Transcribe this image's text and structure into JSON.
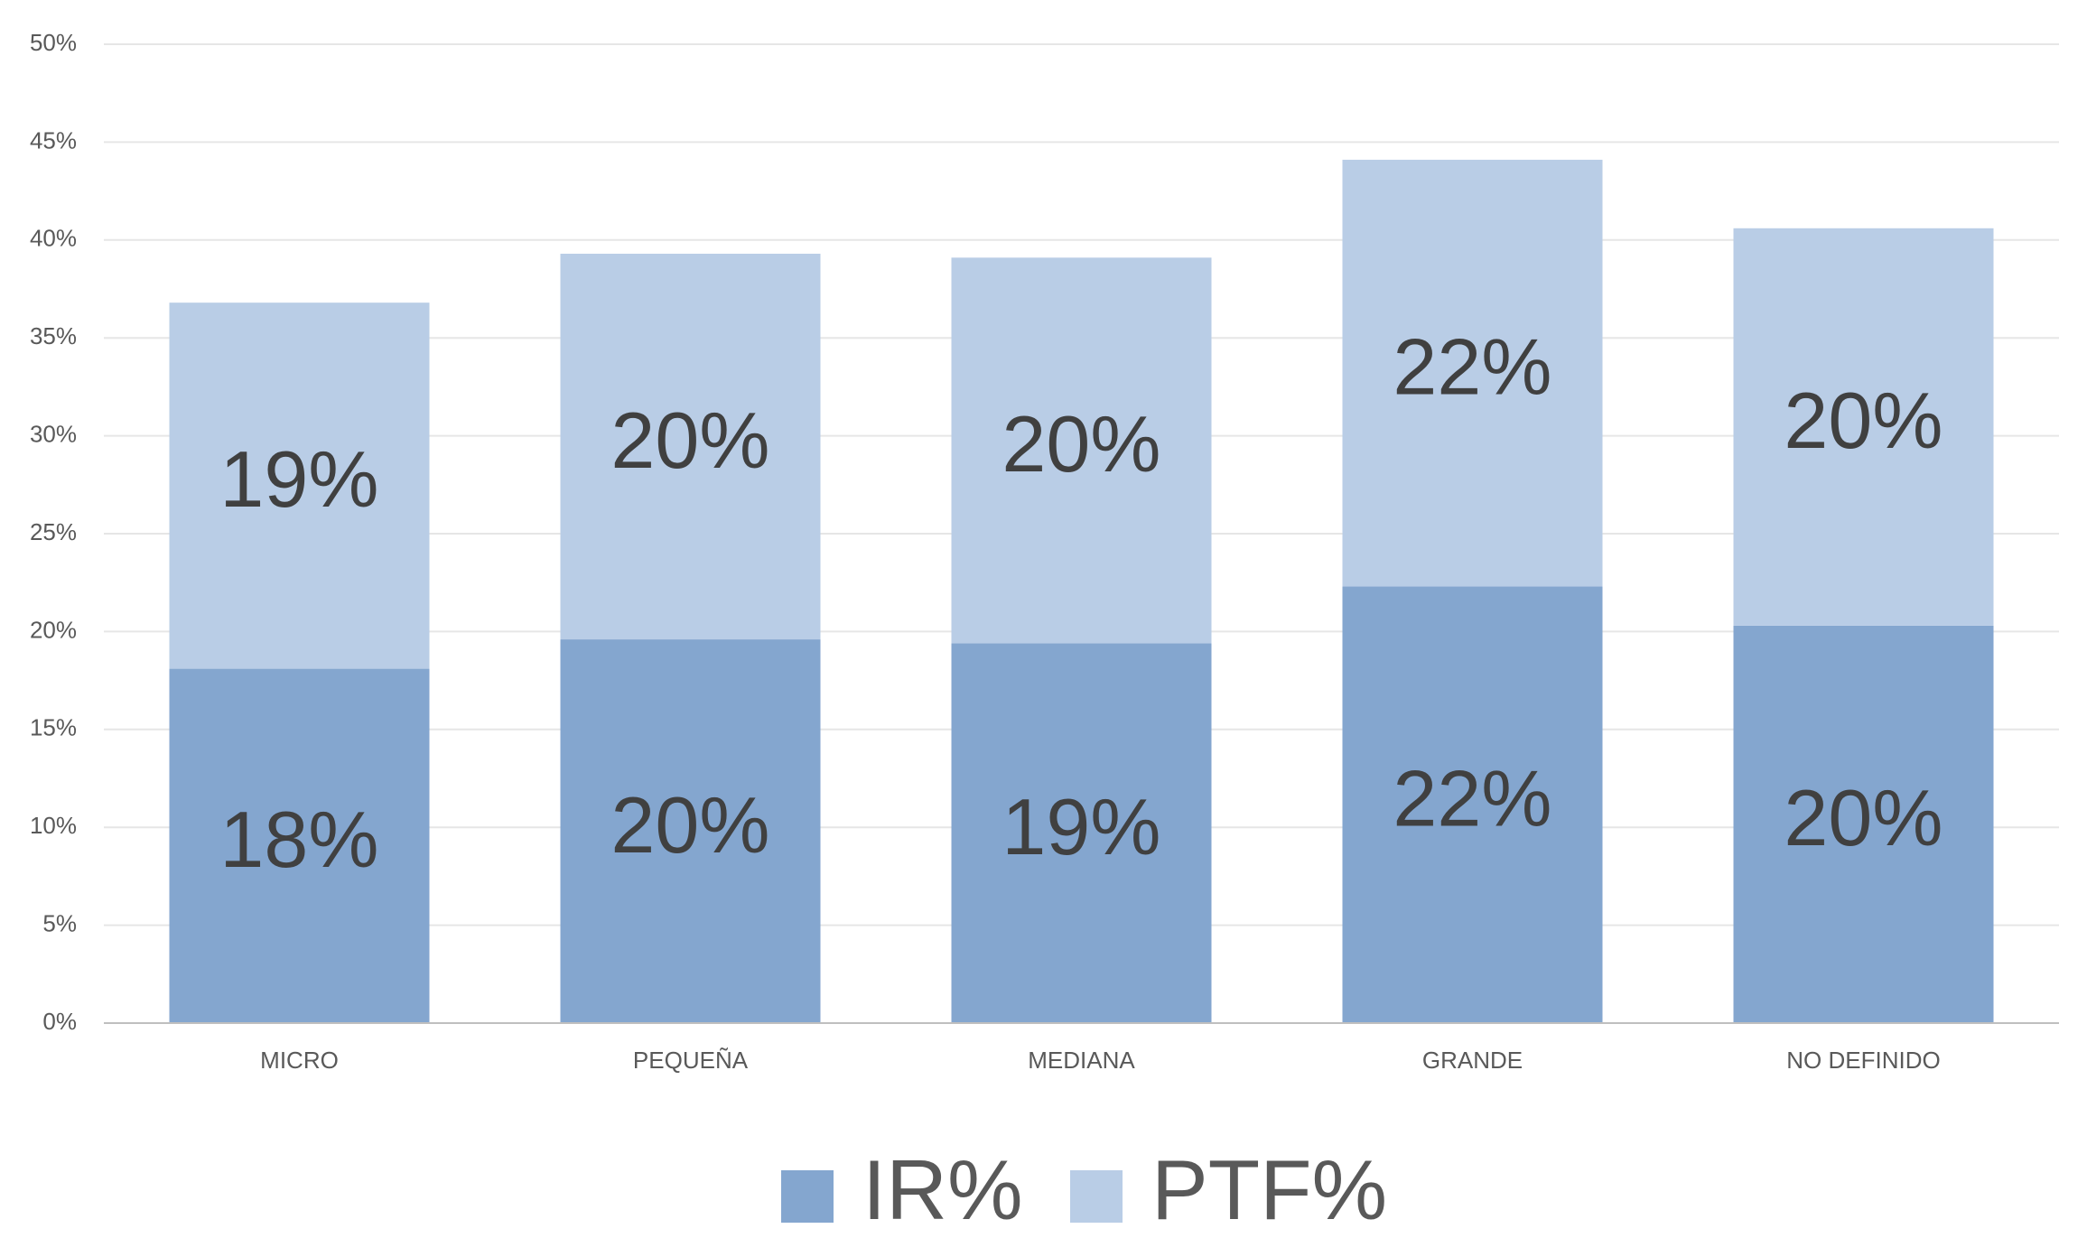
{
  "chart_data": {
    "type": "stacked_bar",
    "categories": [
      "MICRO",
      "PEQUEÑA",
      "MEDIANA",
      "GRANDE",
      "NO DEFINIDO"
    ],
    "series": [
      {
        "name": "IR%",
        "color": "#84a6cf",
        "values": [
          18.1,
          19.6,
          19.4,
          22.3,
          20.3
        ],
        "value_labels": [
          "18%",
          "20%",
          "19%",
          "22%",
          "20%"
        ]
      },
      {
        "name": "PTF%",
        "color": "#b9cde6",
        "values": [
          18.7,
          19.7,
          19.7,
          21.8,
          20.3
        ],
        "value_labels": [
          "19%",
          "20%",
          "20%",
          "22%",
          "20%"
        ]
      }
    ],
    "ylim": [
      0,
      50
    ],
    "yticks": [
      {
        "value": 0,
        "label": "0%"
      },
      {
        "value": 5,
        "label": "5%"
      },
      {
        "value": 10,
        "label": "10%"
      },
      {
        "value": 15,
        "label": "15%"
      },
      {
        "value": 20,
        "label": "20%"
      },
      {
        "value": 25,
        "label": "25%"
      },
      {
        "value": 30,
        "label": "30%"
      },
      {
        "value": 35,
        "label": "35%"
      },
      {
        "value": 40,
        "label": "40%"
      },
      {
        "value": 45,
        "label": "45%"
      },
      {
        "value": 50,
        "label": "50%"
      }
    ],
    "grid": true,
    "legend": "bottom"
  }
}
